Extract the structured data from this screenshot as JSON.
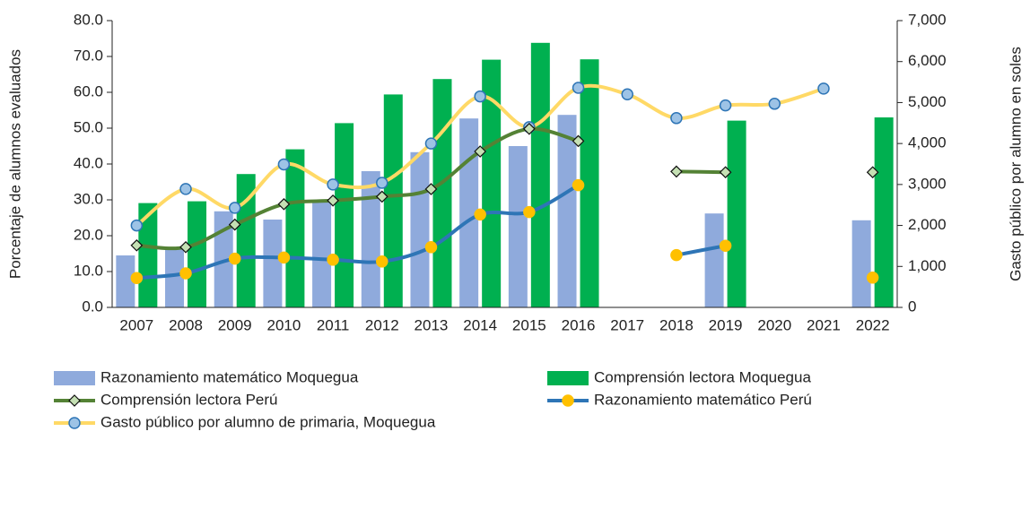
{
  "chart_data": {
    "type": "combo",
    "categories": [
      "2007",
      "2008",
      "2009",
      "2010",
      "2011",
      "2012",
      "2013",
      "2014",
      "2015",
      "2016",
      "2017",
      "2018",
      "2019",
      "2020",
      "2021",
      "2022"
    ],
    "ylabel": "Porcentaje de alumnos evaluados",
    "y2label": "Gasto público por alumno en soles",
    "ylim": [
      0,
      80
    ],
    "yticks": [
      {
        "value": 0,
        "label": "0.0"
      },
      {
        "value": 10,
        "label": "10.0"
      },
      {
        "value": 20,
        "label": "20.0"
      },
      {
        "value": 30,
        "label": "30.0"
      },
      {
        "value": 40,
        "label": "40.0"
      },
      {
        "value": 50,
        "label": "50.0"
      },
      {
        "value": 60,
        "label": "60.0"
      },
      {
        "value": 70,
        "label": "70.0"
      },
      {
        "value": 80,
        "label": "80.0"
      }
    ],
    "y2lim": [
      0,
      7000
    ],
    "y2ticks": [
      0,
      {
        "value": 1000,
        "label": "1,000"
      },
      {
        "value": 2000,
        "label": "2,000"
      },
      {
        "value": 3000,
        "label": "3,000"
      },
      {
        "value": 4000,
        "label": "4,000"
      },
      {
        "value": 5000,
        "label": "5,000"
      },
      {
        "value": 6000,
        "label": "6,000"
      },
      {
        "value": 7000,
        "label": "7,000"
      }
    ],
    "series": [
      {
        "name": "Razonamiento matemático Moquegua",
        "type": "bar",
        "color": "#8faadc",
        "values": [
          14.5,
          16.2,
          26.8,
          24.5,
          29.5,
          38.0,
          43.3,
          52.7,
          45.0,
          53.7,
          null,
          null,
          26.2,
          null,
          null,
          24.3
        ]
      },
      {
        "name": "Comprensión lectora Moquegua",
        "type": "bar",
        "color": "#00b050",
        "values": [
          29.1,
          29.6,
          37.2,
          44.1,
          51.4,
          59.4,
          63.7,
          69.1,
          73.8,
          69.2,
          null,
          null,
          52.1,
          null,
          null,
          53.0
        ]
      },
      {
        "name": "Comprensión lectora Perú",
        "type": "line",
        "color": "#548235",
        "marker": "diamond",
        "marker_color": "#c5e0b4",
        "values": [
          17.3,
          16.8,
          23.1,
          28.8,
          29.8,
          30.9,
          33.0,
          43.5,
          49.8,
          46.4,
          null,
          37.9,
          37.7,
          null,
          null,
          37.7
        ]
      },
      {
        "name": "Razonamiento matemático Perú",
        "type": "line",
        "color": "#2e75b6",
        "marker": "circle",
        "marker_color": "#ffc000",
        "values": [
          8.2,
          9.5,
          13.6,
          13.9,
          13.3,
          12.8,
          16.8,
          25.9,
          26.6,
          34.1,
          null,
          14.6,
          17.2,
          null,
          null,
          8.3
        ]
      },
      {
        "name": "Gasto público por alumno de primaria, Moquegua",
        "type": "line",
        "axis": "y2",
        "color": "#ffd966",
        "marker": "circle",
        "marker_color": "#9dc3e6",
        "values": [
          2000,
          2890,
          2430,
          3490,
          3000,
          3040,
          4000,
          5150,
          4400,
          5360,
          5200,
          4620,
          4930,
          4970,
          5340,
          null
        ]
      }
    ]
  }
}
